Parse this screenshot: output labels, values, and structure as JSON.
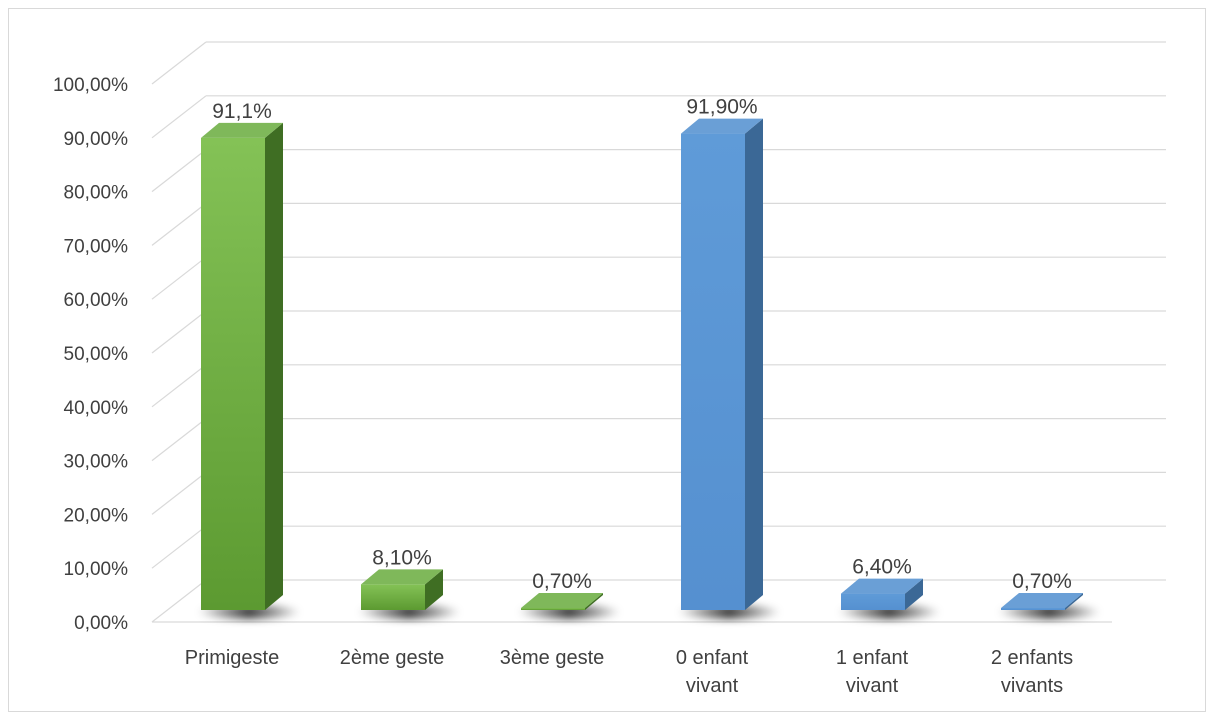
{
  "chart_data": {
    "type": "bar",
    "categories": [
      [
        "Primigeste"
      ],
      [
        "2ème geste"
      ],
      [
        "3ème geste"
      ],
      [
        "0 enfant",
        "vivant"
      ],
      [
        "1 enfant",
        "vivant"
      ],
      [
        "2 enfants",
        "vivants"
      ]
    ],
    "values": [
      91.1,
      8.1,
      0.7,
      91.9,
      6.4,
      0.7
    ],
    "data_labels": [
      "91,1%",
      "8,10%",
      "0,70%",
      "91,90%",
      "6,40%",
      "0,70%"
    ],
    "bar_colors": [
      "green",
      "green",
      "green",
      "blue",
      "blue",
      "blue"
    ],
    "palette": {
      "green": {
        "top": "#7fb85a",
        "front_light": "#84c256",
        "front_dark": "#5c9a31",
        "side": "#3f6e23"
      },
      "blue": {
        "top": "#6a9fd6",
        "front_light": "#5f9bd8",
        "front_dark": "#5590d0",
        "side": "#3b6896"
      },
      "grid": "#d9d9d9",
      "text": "#404040"
    },
    "y_ticks": [
      "0,00%",
      "10,00%",
      "20,00%",
      "30,00%",
      "40,00%",
      "50,00%",
      "60,00%",
      "70,00%",
      "80,00%",
      "90,00%",
      "100,00%"
    ],
    "ylim": [
      0,
      100
    ],
    "title": "",
    "xlabel": "",
    "ylabel": "",
    "grid": true,
    "style": "3d-column"
  }
}
